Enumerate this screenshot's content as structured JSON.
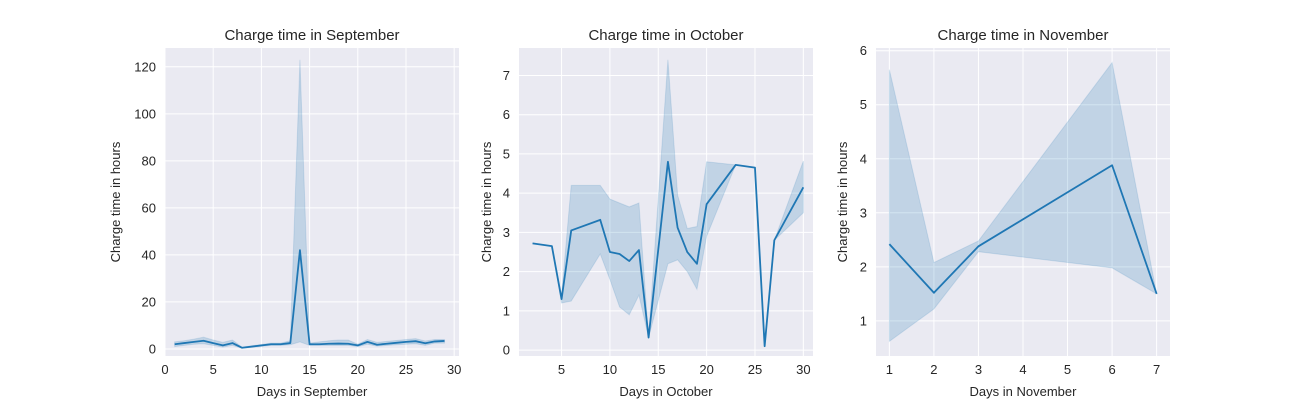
{
  "chart_data": [
    {
      "type": "line",
      "title": "Charge time in September",
      "xlabel": "Days in September",
      "ylabel": "Charge time in hours",
      "xlim": [
        0,
        30.5
      ],
      "ylim": [
        -3,
        128
      ],
      "xticks": [
        0,
        5,
        10,
        15,
        20,
        25,
        30
      ],
      "yticks": [
        0,
        20,
        40,
        60,
        80,
        100,
        120
      ],
      "color": "#1f77b4",
      "x": [
        1,
        2,
        3,
        4,
        5,
        6,
        7,
        8,
        11,
        12,
        13,
        14,
        15,
        16,
        17,
        18,
        19,
        20,
        21,
        22,
        23,
        24,
        25,
        26,
        27,
        28,
        29
      ],
      "y": [
        2,
        2.5,
        3,
        3.5,
        2.5,
        1.5,
        2.5,
        0.5,
        2,
        2,
        2.5,
        42,
        2,
        2,
        2.2,
        2.3,
        2.2,
        1.5,
        3,
        1.8,
        2.2,
        2.6,
        3,
        3.3,
        2.4,
        3.2,
        3.4
      ],
      "lower": [
        1,
        1.5,
        2,
        2.2,
        1.5,
        0.8,
        1.5,
        0.3,
        1.5,
        1.5,
        1.8,
        3,
        1.5,
        1.5,
        1.5,
        1.5,
        1.5,
        1,
        2,
        1.2,
        1.5,
        1.8,
        2,
        2.2,
        1.5,
        2.5,
        2.5
      ],
      "upper": [
        3,
        3.5,
        4.2,
        5,
        3.8,
        2.8,
        3.8,
        0.7,
        2.5,
        2.5,
        3.5,
        123,
        2.5,
        3,
        3.5,
        3.8,
        3.8,
        2,
        4,
        2.8,
        3.2,
        3.6,
        4,
        4.4,
        3.4,
        4,
        4
      ]
    },
    {
      "type": "line",
      "title": "Charge time in October",
      "xlabel": "Days in October",
      "ylabel": "Charge time in hours",
      "xlim": [
        0.6,
        31
      ],
      "ylim": [
        -0.15,
        7.7
      ],
      "xticks": [
        5,
        10,
        15,
        20,
        25,
        30
      ],
      "yticks": [
        0,
        1,
        2,
        3,
        4,
        5,
        6,
        7
      ],
      "color": "#1f77b4",
      "x": [
        2,
        4,
        5,
        6,
        9,
        10,
        11,
        12,
        13,
        14,
        16,
        17,
        18,
        19,
        20,
        23,
        25,
        26,
        27,
        30
      ],
      "y": [
        2.72,
        2.65,
        1.3,
        3.05,
        3.32,
        2.5,
        2.45,
        2.27,
        2.55,
        0.32,
        4.8,
        3.12,
        2.5,
        2.2,
        3.72,
        4.72,
        4.65,
        0.1,
        2.8,
        4.15
      ],
      "lower": [
        2.72,
        2.65,
        1.2,
        1.25,
        2.45,
        1.8,
        1.1,
        0.9,
        1.4,
        0.32,
        2.2,
        2.3,
        2.0,
        1.55,
        2.9,
        4.72,
        4.65,
        0.1,
        2.8,
        3.5
      ],
      "upper": [
        2.72,
        2.65,
        1.4,
        4.2,
        4.2,
        3.85,
        3.75,
        3.65,
        3.75,
        0.32,
        7.4,
        3.95,
        3.1,
        3.15,
        4.8,
        4.72,
        4.65,
        0.1,
        2.8,
        4.82
      ]
    },
    {
      "type": "line",
      "title": "Charge time in November",
      "xlabel": "Days in November",
      "ylabel": "Charge time in hours",
      "xlim": [
        0.7,
        7.3
      ],
      "ylim": [
        0.35,
        6.05
      ],
      "xticks": [
        1,
        2,
        3,
        4,
        5,
        6,
        7
      ],
      "yticks": [
        1,
        2,
        3,
        4,
        5,
        6
      ],
      "color": "#1f77b4",
      "x": [
        1,
        2,
        3,
        6,
        7
      ],
      "y": [
        2.42,
        1.52,
        2.38,
        3.88,
        1.5
      ],
      "lower": [
        0.62,
        1.22,
        2.28,
        1.98,
        1.5
      ],
      "upper": [
        5.65,
        2.08,
        2.48,
        5.78,
        1.5
      ]
    }
  ]
}
